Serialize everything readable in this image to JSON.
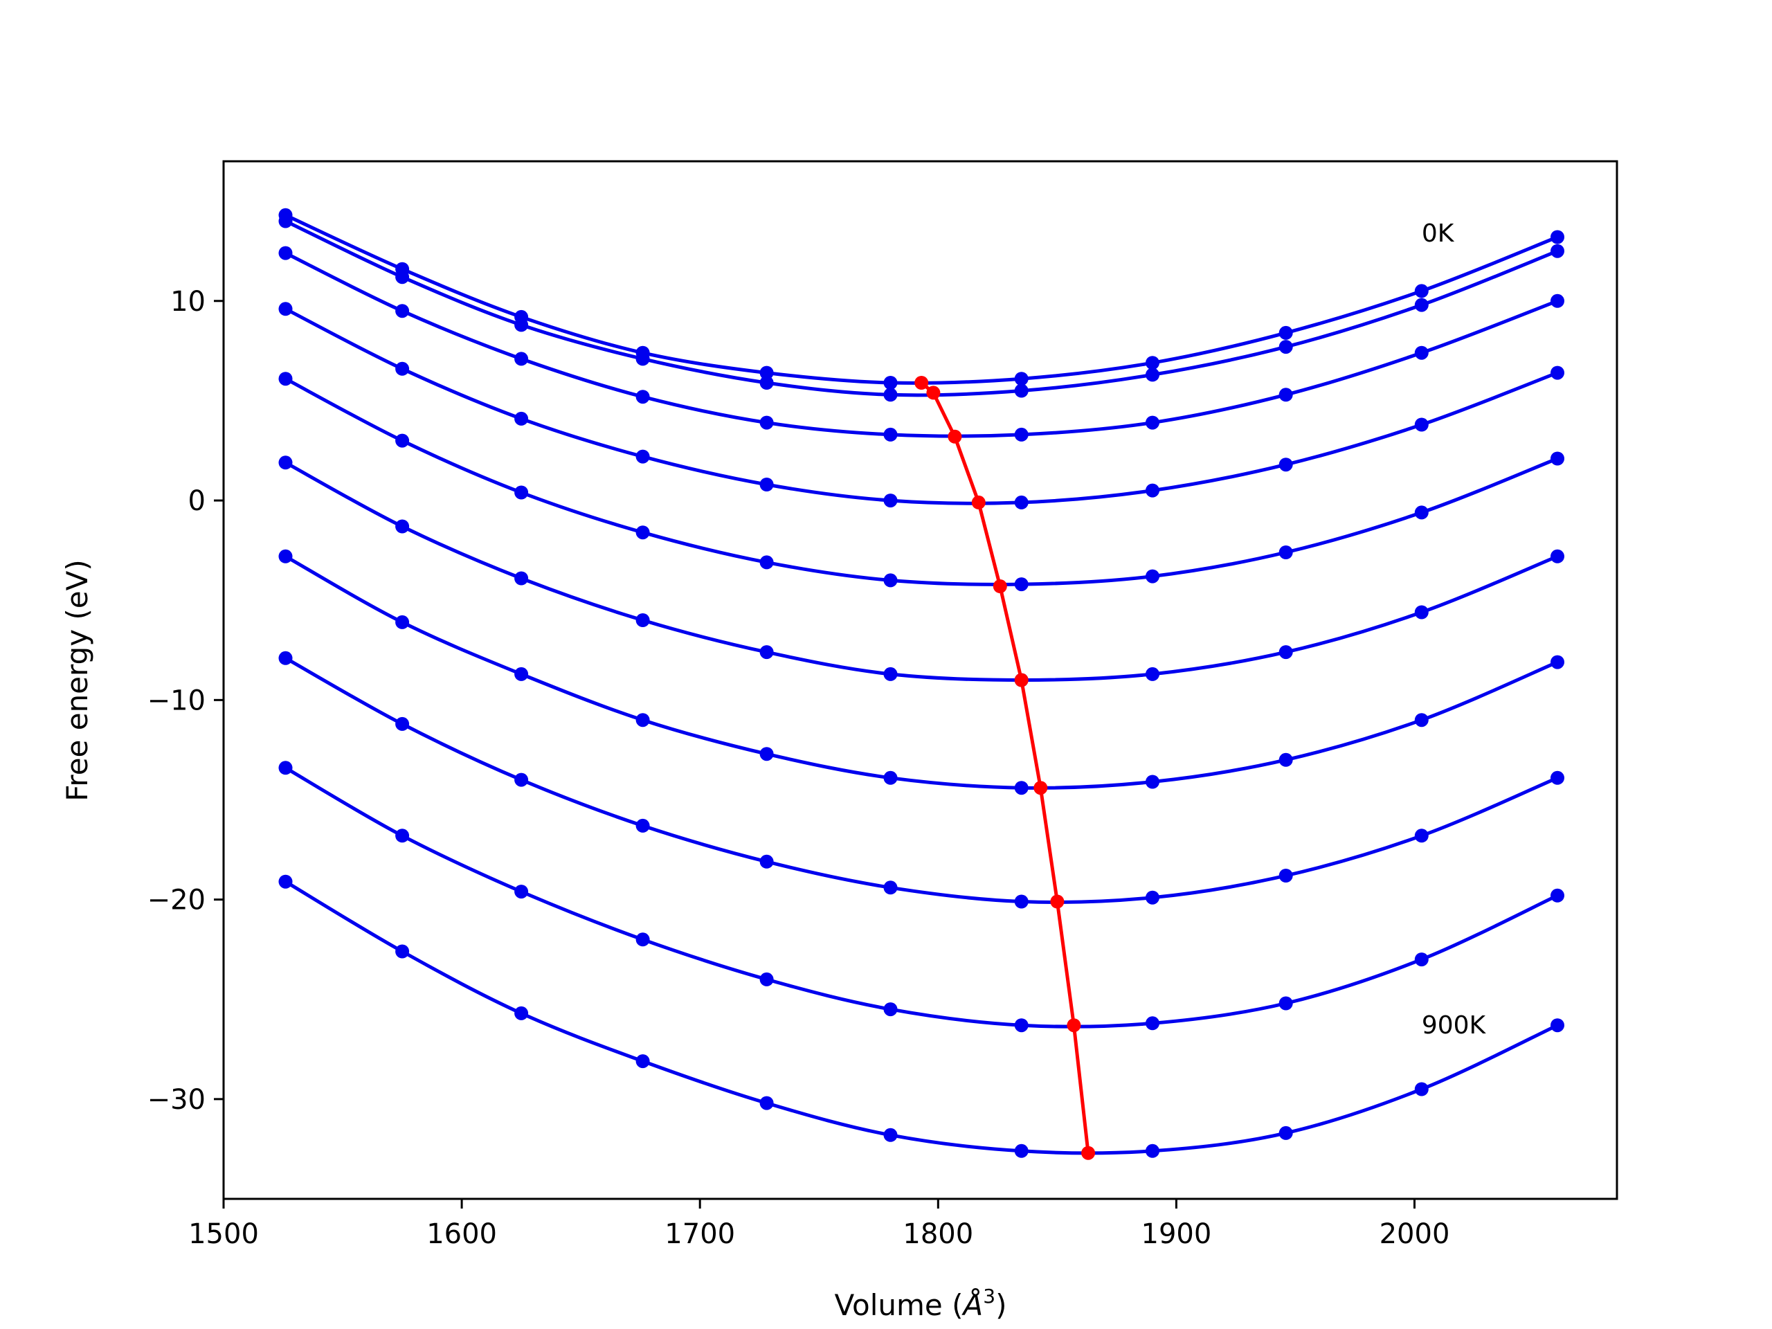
{
  "chart_data": {
    "type": "line",
    "xlabel": "Volume (",
    "xlabel_symbol": "Å",
    "xlabel_sup": "3",
    "xlabel_close": ")",
    "ylabel": "Free energy (eV)",
    "xlim": [
      1500,
      2085
    ],
    "ylim": [
      -35,
      17
    ],
    "xticks": [
      1500,
      1600,
      1700,
      1800,
      1900,
      2000
    ],
    "xtick_labels": [
      "1500",
      "1600",
      "1700",
      "1800",
      "1900",
      "2000"
    ],
    "yticks": [
      10,
      0,
      -10,
      -20,
      -30
    ],
    "ytick_labels": [
      "10",
      "0",
      "−10",
      "−20",
      "−30"
    ],
    "grid": false,
    "annotations": [
      {
        "text": "0K",
        "x": 2003,
        "y": 13.4
      },
      {
        "text": "900K",
        "x": 2003,
        "y": -26.3
      }
    ],
    "x": [
      1526,
      1575,
      1625,
      1676,
      1728,
      1780,
      1835,
      1890,
      1946,
      2003,
      2060
    ],
    "series": [
      {
        "color": "#0000ee",
        "values": [
          14.3,
          11.6,
          9.2,
          7.4,
          6.4,
          5.9,
          6.1,
          6.9,
          8.4,
          10.5,
          13.2
        ]
      },
      {
        "color": "#0000ee",
        "values": [
          14.0,
          11.2,
          8.8,
          7.1,
          5.9,
          5.3,
          5.5,
          6.3,
          7.7,
          9.8,
          12.5
        ]
      },
      {
        "color": "#0000ee",
        "values": [
          12.4,
          9.5,
          7.1,
          5.2,
          3.9,
          3.3,
          3.3,
          3.9,
          5.3,
          7.4,
          10.0
        ]
      },
      {
        "color": "#0000ee",
        "values": [
          9.6,
          6.6,
          4.1,
          2.2,
          0.8,
          0.0,
          -0.1,
          0.5,
          1.8,
          3.8,
          6.4
        ]
      },
      {
        "color": "#0000ee",
        "values": [
          6.1,
          3.0,
          0.4,
          -1.6,
          -3.1,
          -4.0,
          -4.2,
          -3.8,
          -2.6,
          -0.6,
          2.1
        ]
      },
      {
        "color": "#0000ee",
        "values": [
          1.9,
          -1.3,
          -3.9,
          -6.0,
          -7.6,
          -8.7,
          -9.0,
          -8.7,
          -7.6,
          -5.6,
          -2.8
        ]
      },
      {
        "color": "#0000ee",
        "values": [
          -2.8,
          -6.1,
          -8.7,
          -11.0,
          -12.7,
          -13.9,
          -14.4,
          -14.1,
          -13.0,
          -11.0,
          -8.1
        ]
      },
      {
        "color": "#0000ee",
        "values": [
          -7.9,
          -11.2,
          -14.0,
          -16.3,
          -18.1,
          -19.4,
          -20.1,
          -19.9,
          -18.8,
          -16.8,
          -13.9
        ]
      },
      {
        "color": "#0000ee",
        "values": [
          -13.4,
          -16.8,
          -19.6,
          -22.0,
          -24.0,
          -25.5,
          -26.3,
          -26.2,
          -25.2,
          -23.0,
          -19.8
        ]
      },
      {
        "color": "#0000ee",
        "values": [
          -19.1,
          -22.6,
          -25.7,
          -28.1,
          -30.2,
          -31.8,
          -32.6,
          -32.6,
          -31.7,
          -29.5,
          -26.3
        ]
      }
    ],
    "minimum_curve": {
      "color": "#ff0000",
      "x": [
        1793,
        1798,
        1807,
        1817,
        1826,
        1835,
        1843,
        1850,
        1857,
        1863
      ],
      "y": [
        5.9,
        5.4,
        3.2,
        -0.1,
        -4.3,
        -9.0,
        -14.4,
        -20.1,
        -26.3,
        -32.7
      ]
    }
  }
}
